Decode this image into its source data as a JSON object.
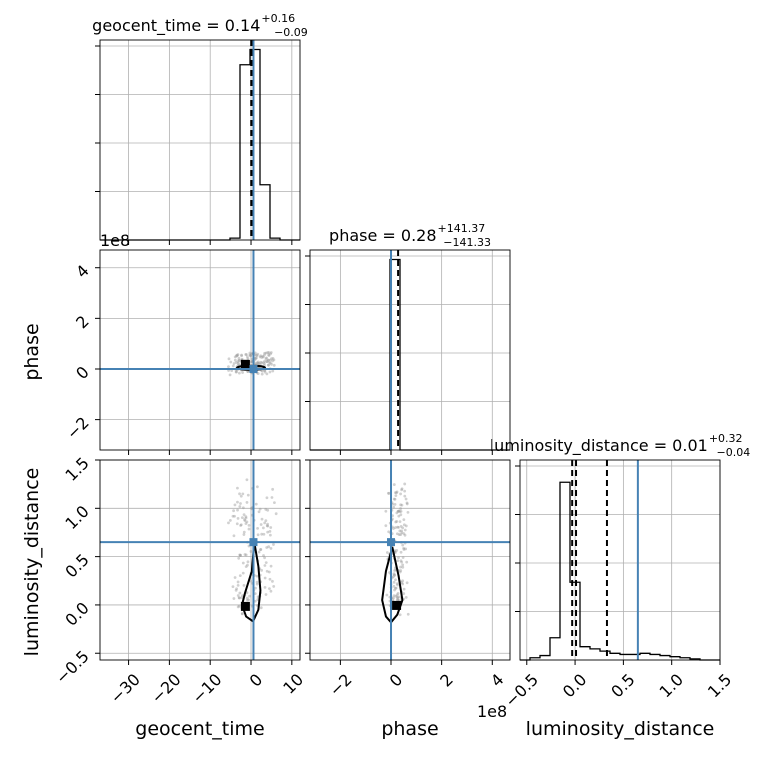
{
  "chart_data": {
    "type": "corner",
    "parameters": [
      "geocent_time",
      "phase",
      "luminosity_distance"
    ],
    "truth_color": "#4682b4",
    "hist_color": "#000000",
    "grid": true,
    "truths": {
      "geocent_time": 0.6,
      "phase": 0.0,
      "luminosity_distance": 0.65
    },
    "titles": {
      "geocent_time": {
        "main": "geocent_time = 0.14",
        "sup": "+0.16",
        "sub": "−0.09"
      },
      "phase": {
        "main": "phase = 0.28",
        "sup": "+141.37",
        "sub": "−141.33"
      },
      "luminosity_distance": {
        "main": "luminosity_distance = 0.01",
        "sup": "+0.32",
        "sub": "−0.04"
      }
    },
    "axis_labels": {
      "geocent_time": "geocent_time",
      "phase": "phase",
      "luminosity_distance": "luminosity_distance"
    },
    "offset_labels": {
      "phase_y": "1e8",
      "phase_x": "1e8"
    },
    "ranges": {
      "geocent_time": [
        -37,
        12
      ],
      "phase": [
        -3.2,
        4.7
      ],
      "luminosity_distance": [
        -0.57,
        1.5
      ]
    },
    "ticks": {
      "geocent_time": {
        "values": [
          -30,
          -20,
          -10,
          0,
          10
        ],
        "labels": [
          "−30",
          "−20",
          "−10",
          "0",
          "10"
        ]
      },
      "phase": {
        "values": [
          -2,
          0,
          2,
          4
        ],
        "labels": [
          "−2",
          "0",
          "2",
          "4"
        ]
      },
      "luminosity_distance": {
        "values": [
          -0.5,
          0.0,
          0.5,
          1.0,
          1.5
        ],
        "labels": [
          "−0.5",
          "0.0",
          "0.5",
          "1.0",
          "1.5"
        ]
      }
    },
    "quantiles": {
      "geocent_time": [
        0.05,
        0.14,
        0.3
      ],
      "phase": [
        -141.05,
        0.28,
        141.65
      ],
      "luminosity_distance": [
        -0.03,
        0.01,
        0.33
      ]
    },
    "hist_1d": {
      "geocent_time": {
        "edges": [
          -37,
          -34.55,
          -32.1,
          -29.65,
          -27.2,
          -24.75,
          -22.3,
          -19.85,
          -17.4,
          -14.95,
          -12.5,
          -10.05,
          -7.6,
          -5.15,
          -2.7,
          -0.25,
          2.2,
          4.65,
          7.1,
          9.55,
          12
        ],
        "counts": [
          0,
          0,
          0,
          0,
          0,
          0,
          0,
          0,
          0,
          0,
          0,
          0,
          0,
          0.01,
          0.92,
          1.0,
          0.29,
          0.01,
          0,
          0
        ],
        "ymax": 1.05
      },
      "phase": {
        "edges": [
          -3.2,
          -2.805,
          -2.41,
          -2.015,
          -1.62,
          -1.225,
          -0.83,
          -0.435,
          -0.04,
          0.355,
          0.75,
          1.145,
          1.54,
          1.935,
          2.33,
          2.725,
          3.12,
          3.515,
          3.91,
          4.305,
          4.7
        ],
        "counts": [
          0,
          0,
          0,
          0,
          0,
          0,
          0,
          0,
          1.0,
          0,
          0,
          0,
          0,
          0,
          0,
          0,
          0,
          0,
          0,
          0
        ],
        "ymax": 1.05
      },
      "luminosity_distance": {
        "edges": [
          -0.57,
          -0.4665,
          -0.363,
          -0.2595,
          -0.156,
          -0.0525,
          0.051,
          0.1545,
          0.258,
          0.3615,
          0.465,
          0.5685,
          0.672,
          0.7755,
          0.879,
          0.9825,
          1.086,
          1.1895,
          1.293,
          1.3965,
          1.5
        ],
        "counts": [
          0,
          0.01,
          0.02,
          0.1,
          0.8,
          0.35,
          0.06,
          0.05,
          0.04,
          0.03,
          0.025,
          0.025,
          0.03,
          0.025,
          0.02,
          0.015,
          0.01,
          0.005,
          0,
          0
        ],
        "ymax": 0.9
      }
    },
    "hist_2d": {
      "phase_vs_geocent_time": {
        "contour_centers": [
          [
            -0.5,
            0.05
          ]
        ],
        "peak_block": [
          -1.5,
          0.2
        ]
      },
      "luminosity_distance_vs_geocent_time": {
        "contour": [
          [
            0.5,
            -0.17
          ],
          [
            1.8,
            -0.05
          ],
          [
            2.3,
            0.15
          ],
          [
            1.8,
            0.4
          ],
          [
            0.8,
            0.65
          ],
          [
            0.2,
            0.35
          ],
          [
            -1.5,
            0.12
          ],
          [
            -2.2,
            0.0
          ],
          [
            -1.2,
            -0.12
          ]
        ],
        "peak_block": [
          -1.5,
          -0.01
        ]
      },
      "luminosity_distance_vs_phase": {
        "contour": [
          [
            0.0,
            -0.18
          ],
          [
            0.25,
            -0.1
          ],
          [
            0.45,
            0.05
          ],
          [
            0.3,
            0.3
          ],
          [
            0.05,
            0.6
          ],
          [
            -0.2,
            0.35
          ],
          [
            -0.35,
            0.05
          ],
          [
            -0.2,
            -0.12
          ]
        ],
        "peak_block": [
          0.2,
          0.0
        ]
      }
    }
  }
}
